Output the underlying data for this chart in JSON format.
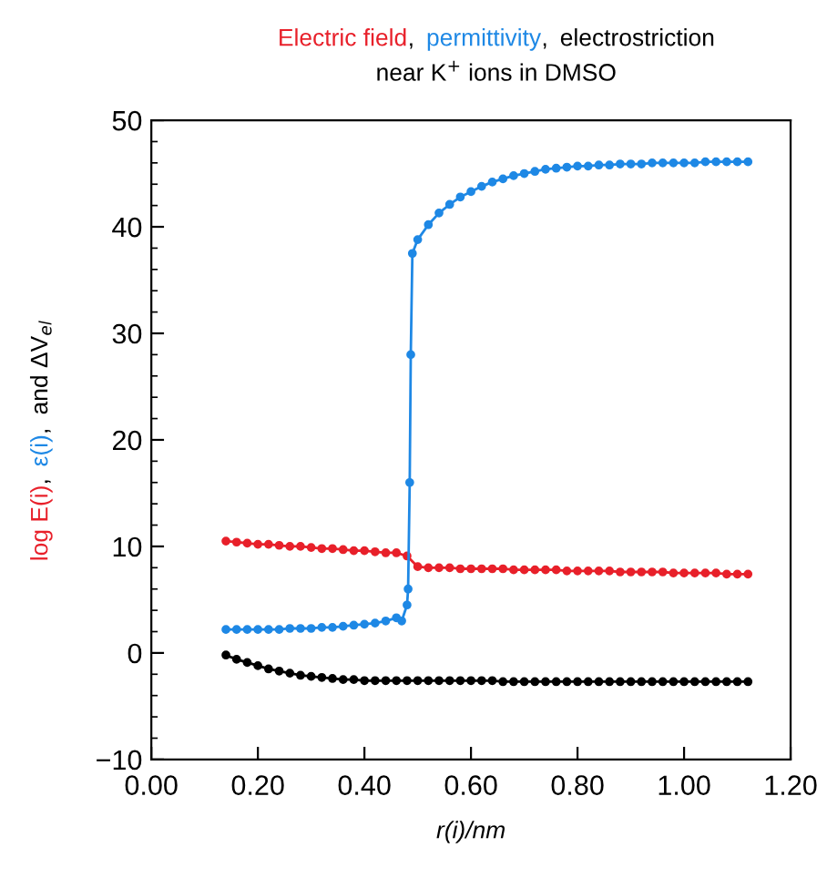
{
  "chart_data": {
    "type": "line",
    "title": "Electric field, permittivity, electrostriction",
    "subtitle": "near K$^{+}$ ions in DMSO",
    "xlabel": "r(i)/nm",
    "ylabel": "log E(i), ε(i), and ΔV$_{el}$",
    "xlim": [
      0.0,
      1.2
    ],
    "xticks": [
      {
        "value": 0.0,
        "label": "0.00"
      },
      {
        "value": 0.2,
        "label": "0.20"
      },
      {
        "value": 0.4,
        "label": "0.40"
      },
      {
        "value": 0.6,
        "label": "0.60"
      },
      {
        "value": 0.8,
        "label": "0.80"
      },
      {
        "value": 1.0,
        "label": "1.00"
      },
      {
        "value": 1.2,
        "label": "1.20"
      }
    ],
    "ylim": [
      -10,
      50
    ],
    "yticks": [
      -10,
      0,
      10,
      20,
      30,
      40,
      50
    ],
    "marker": "circle",
    "line_style": "solid",
    "series": [
      {
        "color": "#e8202a",
        "x": [
          0.14,
          0.16,
          0.18,
          0.2,
          0.22,
          0.24,
          0.26,
          0.28,
          0.3,
          0.32,
          0.34,
          0.36,
          0.38,
          0.4,
          0.42,
          0.44,
          0.46,
          0.48,
          0.5,
          0.52,
          0.54,
          0.56,
          0.58,
          0.6,
          0.62,
          0.64,
          0.66,
          0.68,
          0.7,
          0.72,
          0.74,
          0.76,
          0.78,
          0.8,
          0.82,
          0.84,
          0.86,
          0.88,
          0.9,
          0.92,
          0.94,
          0.96,
          0.98,
          1.0,
          1.02,
          1.04,
          1.06,
          1.08,
          1.1,
          1.12
        ],
        "values": [
          10.5,
          10.4,
          10.3,
          10.2,
          10.2,
          10.1,
          10.0,
          10.0,
          9.9,
          9.8,
          9.8,
          9.7,
          9.6,
          9.6,
          9.5,
          9.4,
          9.4,
          9.1,
          8.1,
          8.0,
          8.0,
          8.0,
          7.9,
          7.9,
          7.9,
          7.9,
          7.9,
          7.8,
          7.8,
          7.8,
          7.8,
          7.8,
          7.7,
          7.7,
          7.7,
          7.7,
          7.7,
          7.6,
          7.6,
          7.6,
          7.6,
          7.6,
          7.5,
          7.5,
          7.5,
          7.5,
          7.5,
          7.4,
          7.4,
          7.4
        ]
      },
      {
        "color": "#1e88e5",
        "x": [
          0.14,
          0.16,
          0.18,
          0.2,
          0.22,
          0.24,
          0.26,
          0.28,
          0.3,
          0.32,
          0.34,
          0.36,
          0.38,
          0.4,
          0.42,
          0.44,
          0.46,
          0.47,
          0.48,
          0.482,
          0.485,
          0.487,
          0.49,
          0.5,
          0.52,
          0.54,
          0.56,
          0.58,
          0.6,
          0.62,
          0.64,
          0.66,
          0.68,
          0.7,
          0.72,
          0.74,
          0.76,
          0.78,
          0.8,
          0.82,
          0.84,
          0.86,
          0.88,
          0.9,
          0.92,
          0.94,
          0.96,
          0.98,
          1.0,
          1.02,
          1.04,
          1.06,
          1.08,
          1.1,
          1.12
        ],
        "values": [
          2.2,
          2.2,
          2.2,
          2.2,
          2.2,
          2.2,
          2.3,
          2.3,
          2.3,
          2.4,
          2.4,
          2.5,
          2.6,
          2.7,
          2.8,
          3.0,
          3.3,
          3.0,
          4.5,
          6.0,
          16,
          28,
          37.5,
          38.8,
          40.2,
          41.3,
          42.1,
          42.8,
          43.3,
          43.8,
          44.2,
          44.5,
          44.8,
          45.0,
          45.2,
          45.4,
          45.5,
          45.6,
          45.7,
          45.7,
          45.8,
          45.8,
          45.9,
          45.9,
          45.9,
          46.0,
          46.0,
          46.0,
          46.0,
          46.0,
          46.1,
          46.1,
          46.1,
          46.1,
          46.1
        ]
      },
      {
        "color": "#000000",
        "x": [
          0.14,
          0.16,
          0.18,
          0.2,
          0.22,
          0.24,
          0.26,
          0.28,
          0.3,
          0.32,
          0.34,
          0.36,
          0.38,
          0.4,
          0.42,
          0.44,
          0.46,
          0.48,
          0.5,
          0.52,
          0.54,
          0.56,
          0.58,
          0.6,
          0.62,
          0.64,
          0.66,
          0.68,
          0.7,
          0.72,
          0.74,
          0.76,
          0.78,
          0.8,
          0.82,
          0.84,
          0.86,
          0.88,
          0.9,
          0.92,
          0.94,
          0.96,
          0.98,
          1.0,
          1.02,
          1.04,
          1.06,
          1.08,
          1.1,
          1.12
        ],
        "values": [
          -0.2,
          -0.6,
          -0.9,
          -1.2,
          -1.5,
          -1.7,
          -1.9,
          -2.1,
          -2.2,
          -2.3,
          -2.4,
          -2.5,
          -2.5,
          -2.6,
          -2.6,
          -2.6,
          -2.6,
          -2.6,
          -2.6,
          -2.6,
          -2.6,
          -2.6,
          -2.6,
          -2.6,
          -2.6,
          -2.6,
          -2.7,
          -2.7,
          -2.7,
          -2.7,
          -2.7,
          -2.7,
          -2.7,
          -2.7,
          -2.7,
          -2.7,
          -2.7,
          -2.7,
          -2.7,
          -2.7,
          -2.7,
          -2.7,
          -2.7,
          -2.7,
          -2.7,
          -2.7,
          -2.7,
          -2.7,
          -2.7,
          -2.7
        ]
      }
    ]
  }
}
